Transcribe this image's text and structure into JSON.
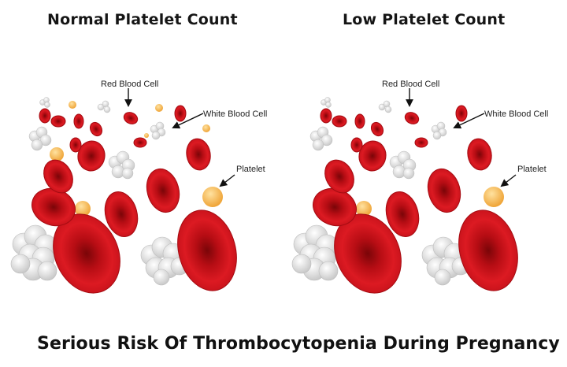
{
  "panels": [
    {
      "title": "Normal Platelet Count",
      "labels": {
        "rbc": "Red Blood Cell",
        "wbc": "White Blood Cell",
        "platelet": "Platelet"
      }
    },
    {
      "title": "Low Platelet Count",
      "labels": {
        "rbc": "Red Blood Cell",
        "wbc": "White Blood Cell",
        "platelet": "Platelet"
      }
    }
  ],
  "caption": "Serious Risk Of Thrombocytopenia During Pregnancy",
  "colors": {
    "rbc": "#d4141c",
    "rbc_dark": "#9d0c12",
    "platelet": "#f5b84a",
    "wbc": "#e6e6e6",
    "text": "#111111"
  }
}
